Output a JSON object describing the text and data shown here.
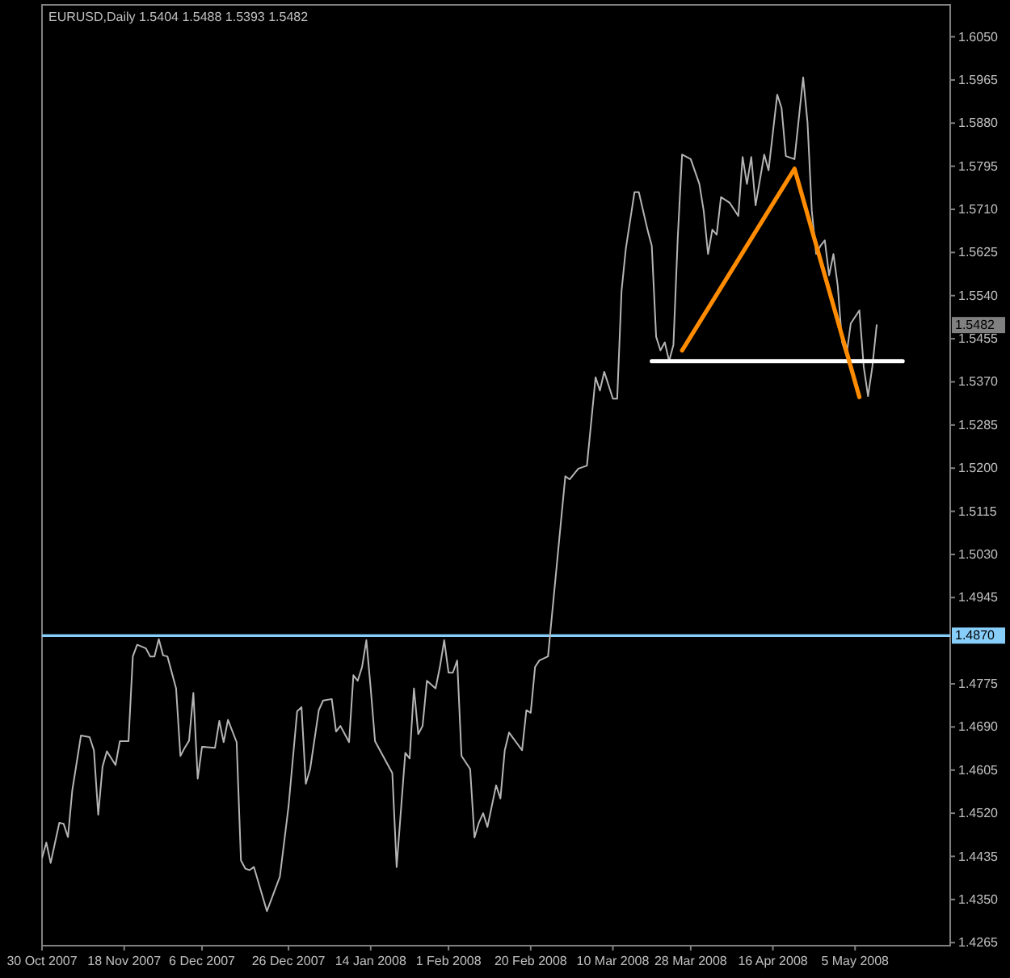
{
  "chart_data": {
    "type": "line",
    "title": "EURUSD,Daily 1.5404 1.5488 1.5393 1.5482",
    "xlim": [
      "2007-10-30",
      "2008-05-27"
    ],
    "xticks": [
      {
        "value": "2007-10-30",
        "label": "30 Oct 2007"
      },
      {
        "value": "2007-11-18",
        "label": "18 Nov 2007"
      },
      {
        "value": "2007-12-06",
        "label": "6 Dec 2007"
      },
      {
        "value": "2007-12-26",
        "label": "26 Dec 2007"
      },
      {
        "value": "2008-01-14",
        "label": "14 Jan 2008"
      },
      {
        "value": "2008-02-01",
        "label": "1 Feb 2008"
      },
      {
        "value": "2008-02-20",
        "label": "20 Feb 2008"
      },
      {
        "value": "2008-03-10",
        "label": "10 Mar 2008"
      },
      {
        "value": "2008-03-28",
        "label": "28 Mar 2008"
      },
      {
        "value": "2008-04-16",
        "label": "16 Apr 2008"
      },
      {
        "value": "2008-05-05",
        "label": "5 May 2008"
      }
    ],
    "ylim": [
      1.4259,
      1.6113
    ],
    "yticks": [
      1.4265,
      {
        "value": 1.435,
        "label": "1.4350"
      },
      1.4435,
      {
        "value": 1.452,
        "label": "1.4520"
      },
      1.4605,
      {
        "value": 1.469,
        "label": "1.4690"
      },
      1.4775,
      1.4945,
      {
        "value": 1.503,
        "label": "1.5030"
      },
      1.5115,
      {
        "value": 1.52,
        "label": "1.5200"
      },
      1.5285,
      {
        "value": 1.537,
        "label": "1.5370"
      },
      1.5455,
      {
        "value": 1.554,
        "label": "1.5540"
      },
      1.5625,
      {
        "value": 1.571,
        "label": "1.5710"
      },
      1.5795,
      {
        "value": 1.588,
        "label": "1.5880"
      },
      1.5965,
      {
        "value": 1.605,
        "label": "1.6050"
      }
    ],
    "series": [
      {
        "color": "#b4b4b4",
        "x": [
          "2007-10-30",
          "2007-10-31",
          "2007-11-01",
          "2007-11-03",
          "2007-11-04",
          "2007-11-05",
          "2007-11-06",
          "2007-11-08",
          "2007-11-10",
          "2007-11-11",
          "2007-11-12",
          "2007-11-13",
          "2007-11-14",
          "2007-11-16",
          "2007-11-17",
          "2007-11-19",
          "2007-11-20",
          "2007-11-21",
          "2007-11-23",
          "2007-11-24",
          "2007-11-25",
          "2007-11-26",
          "2007-11-27",
          "2007-11-28",
          "2007-11-30",
          "2007-12-01",
          "2007-12-02",
          "2007-12-03",
          "2007-12-04",
          "2007-12-05",
          "2007-12-06",
          "2007-12-09",
          "2007-12-10",
          "2007-12-11",
          "2007-12-12",
          "2007-12-14",
          "2007-12-15",
          "2007-12-16",
          "2007-12-17",
          "2007-12-18",
          "2007-12-21",
          "2007-12-24",
          "2007-12-26",
          "2007-12-28",
          "2007-12-29",
          "2007-12-30",
          "2007-12-31",
          "2008-01-02",
          "2008-01-03",
          "2008-01-05",
          "2008-01-06",
          "2008-01-07",
          "2008-01-09",
          "2008-01-10",
          "2008-01-11",
          "2008-01-12",
          "2008-01-13",
          "2008-01-14",
          "2008-01-15",
          "2008-01-19",
          "2008-01-20",
          "2008-01-22",
          "2008-01-23",
          "2008-01-24",
          "2008-01-25",
          "2008-01-26",
          "2008-01-27",
          "2008-01-29",
          "2008-01-30",
          "2008-01-31",
          "2008-02-01",
          "2008-02-02",
          "2008-02-03",
          "2008-02-04",
          "2008-02-06",
          "2008-02-07",
          "2008-02-08",
          "2008-02-09",
          "2008-02-10",
          "2008-02-12",
          "2008-02-13",
          "2008-02-14",
          "2008-02-15",
          "2008-02-18",
          "2008-02-19",
          "2008-02-20",
          "2008-02-21",
          "2008-02-22",
          "2008-02-24",
          "2008-02-28",
          "2008-02-29",
          "2008-03-02",
          "2008-03-04",
          "2008-03-06",
          "2008-03-07",
          "2008-03-08",
          "2008-03-10",
          "2008-03-11",
          "2008-03-12",
          "2008-03-13",
          "2008-03-15",
          "2008-03-16",
          "2008-03-18",
          "2008-03-19",
          "2008-03-20",
          "2008-03-21",
          "2008-03-22",
          "2008-03-23",
          "2008-03-24",
          "2008-03-25",
          "2008-03-26",
          "2008-03-28",
          "2008-03-30",
          "2008-03-31",
          "2008-04-01",
          "2008-04-02",
          "2008-04-03",
          "2008-04-04",
          "2008-04-06",
          "2008-04-08",
          "2008-04-09",
          "2008-04-10",
          "2008-04-11",
          "2008-04-12",
          "2008-04-14",
          "2008-04-15",
          "2008-04-17",
          "2008-04-18",
          "2008-04-19",
          "2008-04-21",
          "2008-04-23",
          "2008-04-24",
          "2008-04-25",
          "2008-04-26",
          "2008-04-27",
          "2008-04-28",
          "2008-04-29",
          "2008-04-30",
          "2008-05-01",
          "2008-05-02",
          "2008-05-03",
          "2008-05-04",
          "2008-05-06",
          "2008-05-07",
          "2008-05-08",
          "2008-05-09",
          "2008-05-10"
        ],
        "values": [
          1.4432,
          1.4462,
          1.4422,
          1.4501,
          1.4499,
          1.4473,
          1.4565,
          1.4673,
          1.467,
          1.4644,
          1.4517,
          1.4612,
          1.4642,
          1.4615,
          1.4662,
          1.4662,
          1.4829,
          1.4852,
          1.4845,
          1.4829,
          1.4829,
          1.4863,
          1.4831,
          1.4829,
          1.4766,
          1.4633,
          1.4649,
          1.4663,
          1.4757,
          1.4588,
          1.4651,
          1.4649,
          1.4702,
          1.466,
          1.4704,
          1.466,
          1.4427,
          1.4411,
          1.4408,
          1.4414,
          1.4327,
          1.4395,
          1.4533,
          1.4721,
          1.4729,
          1.4578,
          1.4607,
          1.4723,
          1.4742,
          1.4745,
          1.4681,
          1.4692,
          1.466,
          1.4792,
          1.4781,
          1.4808,
          1.4861,
          1.4766,
          1.4662,
          1.4599,
          1.4414,
          1.4639,
          1.4628,
          1.4766,
          1.4676,
          1.4692,
          1.4781,
          1.4766,
          1.4808,
          1.4861,
          1.4797,
          1.4797,
          1.4821,
          1.4633,
          1.4607,
          1.4472,
          1.4501,
          1.452,
          1.4493,
          1.4575,
          1.4549,
          1.4644,
          1.4679,
          1.4644,
          1.4723,
          1.4718,
          1.4808,
          1.4821,
          1.4829,
          1.5184,
          1.5178,
          1.5199,
          1.5205,
          1.5379,
          1.5353,
          1.539,
          1.5337,
          1.5337,
          1.5549,
          1.5633,
          1.5744,
          1.5744,
          1.567,
          1.5638,
          1.5459,
          1.5432,
          1.5448,
          1.5411,
          1.5443,
          1.5654,
          1.5818,
          1.5809,
          1.576,
          1.5707,
          1.5622,
          1.567,
          1.566,
          1.5734,
          1.5723,
          1.5697,
          1.5813,
          1.576,
          1.5813,
          1.5718,
          1.5818,
          1.5787,
          1.5936,
          1.591,
          1.5815,
          1.5809,
          1.597,
          1.5882,
          1.5707,
          1.5622,
          1.5638,
          1.5649,
          1.558,
          1.5622,
          1.5559,
          1.5448,
          1.5422,
          1.5485,
          1.5511,
          1.54,
          1.5342,
          1.54,
          1.5482
        ]
      },
      {
        "color": "#ffffff",
        "x": [
          "2008-03-19",
          "2008-05-16"
        ],
        "values": [
          1.5411,
          1.5411
        ]
      },
      {
        "color": "#ff8c00",
        "x": [
          "2008-03-26",
          "2008-04-21",
          "2008-05-06"
        ],
        "values": [
          1.5432,
          1.579,
          1.534
        ]
      }
    ],
    "ref_lines": [
      {
        "axis": "y",
        "value": 1.487,
        "label": "1.4870",
        "color": "#87cefa"
      }
    ],
    "annotations": [
      "1.5482"
    ]
  }
}
